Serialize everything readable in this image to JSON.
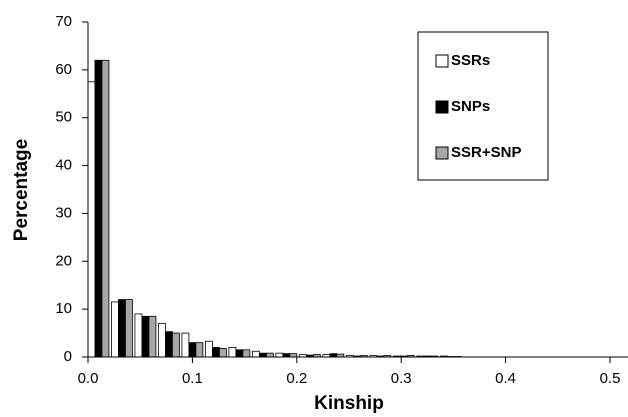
{
  "chart_data": {
    "type": "bar",
    "x_label": "Kinship",
    "y_label": "Percentage",
    "x": [
      0.01,
      0.0325,
      0.055,
      0.0775,
      0.1,
      0.1225,
      0.145,
      0.1675,
      0.19,
      0.2125,
      0.235,
      0.2575,
      0.28,
      0.3025,
      0.325,
      0.3475
    ],
    "series": [
      {
        "name": "SSRs",
        "color": "#ffffff",
        "values": [
          57.5,
          11.5,
          9,
          7,
          5,
          3.3,
          2,
          1.2,
          0.8,
          0.5,
          0.5,
          0.3,
          0.3,
          0.2,
          0.2,
          0.2
        ]
      },
      {
        "name": "SNPs",
        "color": "#000000",
        "values": [
          62,
          12,
          8.5,
          5.3,
          3,
          2,
          1.5,
          0.8,
          0.7,
          0.4,
          0.7,
          0.2,
          0.2,
          0.2,
          0.2,
          0.1
        ]
      },
      {
        "name": "SSR+SNP",
        "color": "#a6a6a6",
        "values": [
          62,
          12,
          8.5,
          5,
          3,
          1.8,
          1.5,
          0.8,
          0.7,
          0.5,
          0.6,
          0.3,
          0.3,
          0.3,
          0.2,
          0.1
        ]
      }
    ],
    "xlim": [
      0,
      0.5
    ],
    "ylim": [
      0,
      70
    ],
    "xticks": [
      {
        "value": 0,
        "label": "0.0"
      },
      0.1,
      0.2,
      0.3,
      0.4,
      0.5
    ],
    "yticks": [
      0,
      10,
      20,
      30,
      40,
      50,
      60,
      70
    ],
    "legend": "upper right"
  }
}
